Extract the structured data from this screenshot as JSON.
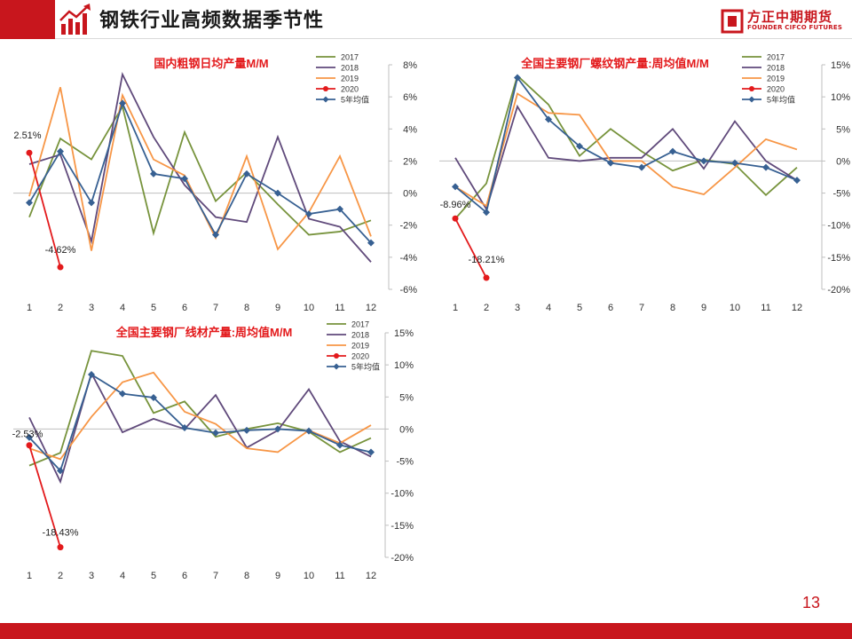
{
  "header": {
    "title": "钢铁行业高频数据季节性",
    "logo_name": "方正中期期货",
    "logo_sub": "FOUNDER CIFCO FUTURES"
  },
  "page_number": "13",
  "colors": {
    "brand_red": "#c8161d",
    "s2017": "#77933c",
    "s2018": "#604a7b",
    "s2019": "#f79646",
    "s2020": "#e31a1c",
    "s5yr": "#376092"
  },
  "chart_data": [
    {
      "type": "line",
      "title": "国内粗钢日均产量M/M",
      "x": [
        1,
        2,
        3,
        4,
        5,
        6,
        7,
        8,
        9,
        10,
        11,
        12
      ],
      "ylim": [
        -6,
        8
      ],
      "yticks": [
        8,
        6,
        4,
        2,
        0,
        -2,
        -4,
        -6
      ],
      "ytick_labels": [
        "8%",
        "6%",
        "4%",
        "2%",
        "0%",
        "-2%",
        "-4%",
        "-6%"
      ],
      "legend_position": "top-right",
      "series": [
        {
          "name": "2017",
          "color": "#77933c",
          "marker": "none",
          "values": [
            -1.5,
            3.4,
            2.1,
            5.4,
            -2.5,
            3.8,
            -0.5,
            1.3,
            -0.7,
            -2.6,
            -2.4,
            -1.7
          ]
        },
        {
          "name": "2018",
          "color": "#604a7b",
          "marker": "none",
          "values": [
            1.8,
            2.4,
            -3.0,
            7.4,
            3.5,
            0.5,
            -1.5,
            -1.8,
            3.5,
            -1.6,
            -2.1,
            -4.3
          ]
        },
        {
          "name": "2019",
          "color": "#f79646",
          "marker": "none",
          "values": [
            -0.2,
            6.6,
            -3.6,
            6.1,
            2.1,
            1.1,
            -2.8,
            2.3,
            -3.5,
            -1.2,
            2.3,
            -2.7
          ]
        },
        {
          "name": "2020",
          "color": "#e31a1c",
          "marker": "circle",
          "values": [
            2.51,
            -4.62,
            null,
            null,
            null,
            null,
            null,
            null,
            null,
            null,
            null,
            null
          ]
        },
        {
          "name": "5年均值",
          "color": "#376092",
          "marker": "diamond",
          "values": [
            -0.6,
            2.6,
            -0.6,
            5.6,
            1.2,
            0.9,
            -2.6,
            1.2,
            0.0,
            -1.3,
            -1.0,
            -3.1
          ]
        }
      ],
      "annotations": [
        {
          "text": "2.51%",
          "x": 1,
          "y": 2.51
        },
        {
          "text": "-4.62%",
          "x": 2,
          "y": -4.62
        }
      ]
    },
    {
      "type": "line",
      "title": "全国主要钢厂螺纹钢产量:周均值M/M",
      "x": [
        1,
        2,
        3,
        4,
        5,
        6,
        7,
        8,
        9,
        10,
        11,
        12
      ],
      "ylim": [
        -20,
        15
      ],
      "yticks": [
        15,
        10,
        5,
        0,
        -5,
        -10,
        -15,
        -20
      ],
      "ytick_labels": [
        "15%",
        "10%",
        "5%",
        "0%",
        "-5%",
        "-10%",
        "-15%",
        "-20%"
      ],
      "legend_position": "top-right",
      "series": [
        {
          "name": "2017",
          "color": "#77933c",
          "marker": "none",
          "values": [
            -9.0,
            -3.5,
            13.3,
            8.8,
            0.8,
            5.0,
            1.5,
            -1.5,
            0.2,
            -0.5,
            -5.3,
            -1.0
          ]
        },
        {
          "name": "2018",
          "color": "#604a7b",
          "marker": "none",
          "values": [
            0.5,
            -7.5,
            8.5,
            0.5,
            0.0,
            0.5,
            0.5,
            5.0,
            -1.2,
            6.2,
            0.0,
            -3.0
          ]
        },
        {
          "name": "2019",
          "color": "#f79646",
          "marker": "none",
          "values": [
            -4.0,
            -7.0,
            10.5,
            7.5,
            7.2,
            0.0,
            0.0,
            -4.0,
            -5.2,
            -1.0,
            3.4,
            1.8
          ]
        },
        {
          "name": "2020",
          "color": "#e31a1c",
          "marker": "circle",
          "values": [
            -8.96,
            -18.21,
            null,
            null,
            null,
            null,
            null,
            null,
            null,
            null,
            null,
            null
          ]
        },
        {
          "name": "5年均值",
          "color": "#376092",
          "marker": "diamond",
          "values": [
            -4.0,
            -8.0,
            13.0,
            6.5,
            2.3,
            -0.3,
            -1.0,
            1.5,
            0.0,
            -0.3,
            -1.0,
            -3.0
          ]
        }
      ],
      "annotations": [
        {
          "text": "-8.96%",
          "x": 1,
          "y": -8.96
        },
        {
          "text": "-18.21%",
          "x": 2,
          "y": -18.21
        }
      ]
    },
    {
      "type": "line",
      "title": "全国主要钢厂线材产量:周均值M/M",
      "x": [
        1,
        2,
        3,
        4,
        5,
        6,
        7,
        8,
        9,
        10,
        11,
        12
      ],
      "ylim": [
        -20,
        15
      ],
      "yticks": [
        15,
        10,
        5,
        0,
        -5,
        -10,
        -15,
        -20
      ],
      "ytick_labels": [
        "15%",
        "10%",
        "5%",
        "0%",
        "-5%",
        "-10%",
        "-15%",
        "-20%"
      ],
      "legend_position": "top-right",
      "series": [
        {
          "name": "2017",
          "color": "#77933c",
          "marker": "none",
          "values": [
            -5.7,
            -3.7,
            12.2,
            11.4,
            2.5,
            4.3,
            -1.2,
            0.0,
            0.9,
            -0.4,
            -3.6,
            -1.4
          ]
        },
        {
          "name": "2018",
          "color": "#604a7b",
          "marker": "none",
          "values": [
            1.8,
            -8.2,
            8.7,
            -0.5,
            1.6,
            0.0,
            5.3,
            -2.9,
            -0.2,
            6.2,
            -1.9,
            -4.3
          ]
        },
        {
          "name": "2019",
          "color": "#f79646",
          "marker": "none",
          "values": [
            -3.0,
            -4.7,
            1.9,
            7.3,
            8.8,
            2.7,
            0.8,
            -3.0,
            -3.6,
            -0.2,
            -2.2,
            0.6
          ]
        },
        {
          "name": "2020",
          "color": "#e31a1c",
          "marker": "circle",
          "values": [
            -2.53,
            -18.43,
            null,
            null,
            null,
            null,
            null,
            null,
            null,
            null,
            null,
            null
          ]
        },
        {
          "name": "5年均值",
          "color": "#376092",
          "marker": "diamond",
          "values": [
            -1.3,
            -6.5,
            8.5,
            5.5,
            4.9,
            0.2,
            -0.6,
            -0.2,
            0.0,
            -0.3,
            -2.5,
            -3.6
          ]
        }
      ],
      "annotations": [
        {
          "text": "-2.53%",
          "x": 1,
          "y": -2.53
        },
        {
          "text": "-18.43%",
          "x": 2,
          "y": -18.43
        }
      ]
    }
  ]
}
